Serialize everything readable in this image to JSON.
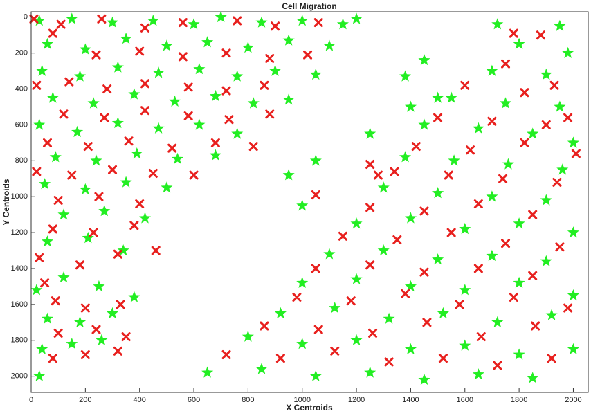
{
  "chart_data": {
    "type": "scatter",
    "title": "Cell Migration",
    "x_label": "X Centroids",
    "y_label": "Y Centroids",
    "xlim": [
      0,
      2055
    ],
    "ylim": [
      -30,
      2090
    ],
    "y_reversed": true,
    "xticks": [
      0,
      200,
      400,
      600,
      800,
      1000,
      1200,
      1400,
      1600,
      1800,
      2000
    ],
    "yticks": [
      0,
      200,
      400,
      600,
      800,
      1000,
      1200,
      1400,
      1600,
      1800,
      2000
    ],
    "series": [
      {
        "color": "#22ee22",
        "marker": "star",
        "x": [
          30,
          150,
          300,
          450,
          600,
          700,
          850,
          1000,
          1150,
          1200,
          60,
          200,
          350,
          500,
          650,
          800,
          950,
          1100,
          40,
          180,
          320,
          470,
          620,
          760,
          900,
          1050,
          80,
          230,
          380,
          530,
          680,
          820,
          950,
          30,
          170,
          320,
          470,
          620,
          760,
          90,
          240,
          390,
          540,
          680,
          50,
          200,
          350,
          500,
          120,
          270,
          420,
          60,
          210,
          340,
          20,
          120,
          250,
          380,
          60,
          180,
          300,
          40,
          150,
          260,
          30,
          1720,
          1950,
          1800,
          1980,
          1700,
          1900,
          1550,
          1750,
          1950,
          1450,
          1650,
          1850,
          2000,
          1380,
          1560,
          1760,
          1960,
          1300,
          1500,
          1700,
          1900,
          1200,
          1400,
          1600,
          1800,
          2000,
          1100,
          1300,
          1500,
          1700,
          1900,
          1000,
          1200,
          1400,
          1600,
          1800,
          2000,
          920,
          1120,
          1320,
          1520,
          1720,
          1920,
          800,
          1000,
          1200,
          1400,
          1600,
          1800,
          2000,
          650,
          850,
          1050,
          1250,
          1450,
          1650,
          1850,
          1050,
          1000,
          1250,
          1450,
          1380,
          950,
          1400,
          1500
        ],
        "values": [
          20,
          10,
          30,
          20,
          40,
          0,
          30,
          20,
          40,
          10,
          150,
          180,
          120,
          160,
          140,
          170,
          130,
          160,
          300,
          330,
          280,
          310,
          290,
          330,
          300,
          320,
          450,
          480,
          430,
          470,
          440,
          480,
          460,
          600,
          640,
          590,
          620,
          600,
          650,
          780,
          800,
          760,
          790,
          770,
          930,
          960,
          920,
          950,
          1100,
          1080,
          1120,
          1250,
          1230,
          1300,
          1520,
          1450,
          1500,
          1560,
          1680,
          1700,
          1650,
          1850,
          1820,
          1800,
          2000,
          40,
          50,
          150,
          200,
          300,
          320,
          450,
          480,
          500,
          600,
          620,
          650,
          700,
          780,
          800,
          820,
          850,
          950,
          980,
          1000,
          1020,
          1150,
          1120,
          1180,
          1150,
          1200,
          1320,
          1300,
          1350,
          1330,
          1360,
          1480,
          1460,
          1500,
          1520,
          1480,
          1550,
          1650,
          1620,
          1680,
          1650,
          1700,
          1660,
          1780,
          1820,
          1800,
          1850,
          1830,
          1880,
          1850,
          1980,
          1960,
          2000,
          1980,
          2020,
          1990,
          2010,
          800,
          1050,
          650,
          240,
          330,
          880,
          500,
          450
        ]
      },
      {
        "color": "#e8201e",
        "marker": "x",
        "x": [
          10,
          110,
          260,
          420,
          560,
          760,
          900,
          1060,
          80,
          240,
          400,
          560,
          720,
          880,
          1020,
          20,
          140,
          280,
          420,
          580,
          720,
          860,
          120,
          270,
          420,
          580,
          730,
          880,
          60,
          210,
          360,
          520,
          680,
          820,
          20,
          150,
          300,
          450,
          600,
          100,
          250,
          400,
          80,
          230,
          380,
          30,
          180,
          320,
          460,
          50,
          90,
          200,
          330,
          100,
          240,
          350,
          80,
          200,
          320,
          1780,
          1880,
          1750,
          1930,
          1600,
          1820,
          1980,
          1500,
          1700,
          1900,
          1420,
          1620,
          1820,
          2010,
          1340,
          1540,
          1740,
          1940,
          1250,
          1450,
          1650,
          1850,
          1150,
          1350,
          1550,
          1750,
          1950,
          1050,
          1250,
          1450,
          1650,
          1850,
          980,
          1180,
          1380,
          1580,
          1780,
          1980,
          860,
          1060,
          1260,
          1460,
          1660,
          1860,
          720,
          920,
          1120,
          1320,
          1520,
          1720,
          1920,
          1250,
          1050,
          1280
        ],
        "values": [
          10,
          40,
          10,
          60,
          30,
          20,
          50,
          30,
          90,
          210,
          190,
          220,
          200,
          230,
          210,
          380,
          360,
          400,
          370,
          390,
          410,
          380,
          540,
          560,
          520,
          550,
          570,
          540,
          700,
          720,
          690,
          730,
          700,
          720,
          860,
          880,
          850,
          870,
          880,
          1020,
          1000,
          1040,
          1180,
          1200,
          1160,
          1340,
          1380,
          1320,
          1300,
          1480,
          1580,
          1620,
          1600,
          1760,
          1740,
          1780,
          1900,
          1880,
          1860,
          90,
          100,
          260,
          380,
          380,
          420,
          560,
          560,
          580,
          600,
          720,
          740,
          700,
          760,
          860,
          880,
          900,
          920,
          1060,
          1080,
          1040,
          1100,
          1220,
          1240,
          1200,
          1260,
          1280,
          1400,
          1380,
          1420,
          1400,
          1440,
          1560,
          1580,
          1540,
          1600,
          1560,
          1620,
          1720,
          1740,
          1760,
          1700,
          1780,
          1720,
          1880,
          1900,
          1860,
          1920,
          1900,
          1940,
          1900,
          820,
          990,
          880
        ]
      }
    ]
  }
}
